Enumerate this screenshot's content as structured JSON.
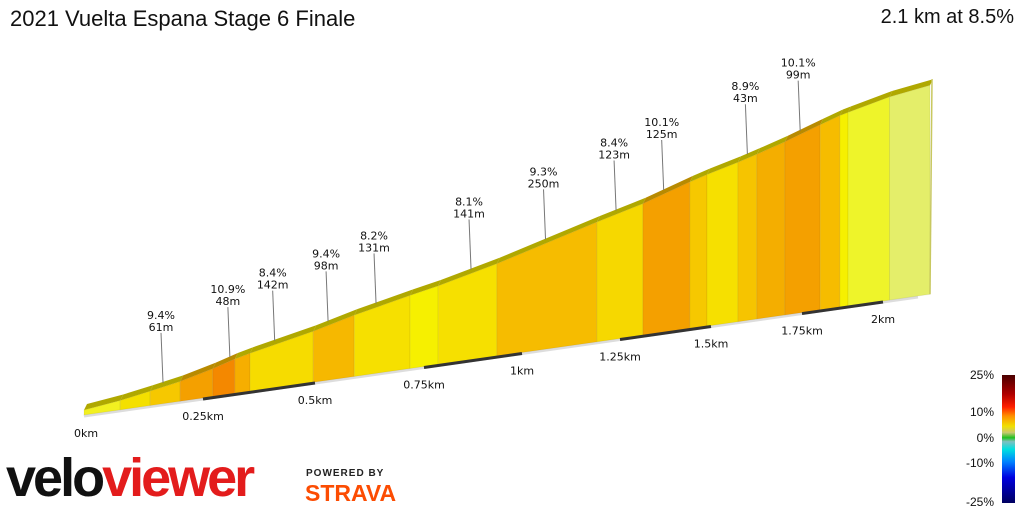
{
  "header": {
    "title": "2021 Vuelta Espana Stage 6 Finale",
    "summary": "2.1 km at 8.5%"
  },
  "chart_data": {
    "type": "area",
    "title": "2021 Vuelta Espana Stage 6 Finale",
    "distance_km": 2.1,
    "avg_grade_pct": 8.5,
    "x_ticks": [
      "0km",
      "0.25km",
      "0.5km",
      "0.75km",
      "1km",
      "1.25km",
      "1.5km",
      "1.75km",
      "2km"
    ],
    "segments": [
      {
        "start_km": 0,
        "end_km": 0.076,
        "grade": 5,
        "color": "#f2f020"
      },
      {
        "start_km": 0.076,
        "end_km": 0.139,
        "grade": 7,
        "color": "#f4e000"
      },
      {
        "start_km": 0.139,
        "end_km": 0.202,
        "grade": 7.5,
        "color": "#f6c800"
      },
      {
        "start_km": 0.202,
        "end_km": 0.272,
        "grade": 10,
        "color": "#f4a000"
      },
      {
        "start_km": 0.272,
        "end_km": 0.321,
        "grade": 11.5,
        "color": "#f48800"
      },
      {
        "start_km": 0.321,
        "end_km": 0.355,
        "grade": 9,
        "color": "#f6ae00"
      },
      {
        "start_km": 0.355,
        "end_km": 0.496,
        "grade": 8,
        "color": "#f6dc00"
      },
      {
        "start_km": 0.496,
        "end_km": 0.59,
        "grade": 9.4,
        "color": "#f6b800"
      },
      {
        "start_km": 0.59,
        "end_km": 0.718,
        "grade": 8,
        "color": "#f6e000"
      },
      {
        "start_km": 0.718,
        "end_km": 0.786,
        "grade": 7,
        "color": "#f6f000"
      },
      {
        "start_km": 0.786,
        "end_km": 0.936,
        "grade": 8,
        "color": "#f6e000"
      },
      {
        "start_km": 0.936,
        "end_km": 1.191,
        "grade": 9.3,
        "color": "#f6bc00"
      },
      {
        "start_km": 1.191,
        "end_km": 1.313,
        "grade": 8.4,
        "color": "#f6d800"
      },
      {
        "start_km": 1.313,
        "end_km": 1.442,
        "grade": 10.1,
        "color": "#f4a000"
      },
      {
        "start_km": 1.442,
        "end_km": 1.489,
        "grade": 9,
        "color": "#f6c800"
      },
      {
        "start_km": 1.489,
        "end_km": 1.574,
        "grade": 8,
        "color": "#f6e000"
      },
      {
        "start_km": 1.574,
        "end_km": 1.626,
        "grade": 9,
        "color": "#f6c400"
      },
      {
        "start_km": 1.626,
        "end_km": 1.703,
        "grade": 9.5,
        "color": "#f4ae00"
      },
      {
        "start_km": 1.703,
        "end_km": 1.806,
        "grade": 10.1,
        "color": "#f4a000"
      },
      {
        "start_km": 1.806,
        "end_km": 1.867,
        "grade": 9,
        "color": "#f6bc00"
      },
      {
        "start_km": 1.867,
        "end_km": 1.892,
        "grade": 7,
        "color": "#f6f000"
      },
      {
        "start_km": 1.892,
        "end_km": 2.02,
        "grade": 6.5,
        "color": "#eef42a"
      },
      {
        "start_km": 2.02,
        "end_km": 2.145,
        "grade": 4,
        "color": "#e4ee6a"
      }
    ],
    "annotations": [
      {
        "km": 0.166,
        "grade": "9.4%",
        "length": "61m"
      },
      {
        "km": 0.31,
        "grade": "10.9%",
        "length": "48m"
      },
      {
        "km": 0.41,
        "grade": "8.4%",
        "length": "142m"
      },
      {
        "km": 0.53,
        "grade": "9.4%",
        "length": "98m"
      },
      {
        "km": 0.64,
        "grade": "8.2%",
        "length": "131m"
      },
      {
        "km": 0.87,
        "grade": "8.1%",
        "length": "141m"
      },
      {
        "km": 1.06,
        "grade": "9.3%",
        "length": "250m"
      },
      {
        "km": 1.24,
        "grade": "8.4%",
        "length": "123m"
      },
      {
        "km": 1.37,
        "grade": "10.1%",
        "length": "125m"
      },
      {
        "km": 1.6,
        "grade": "8.9%",
        "length": "43m"
      },
      {
        "km": 1.745,
        "grade": "10.1%",
        "length": "99m"
      }
    ]
  },
  "legend": {
    "labels": [
      "25%",
      "10%",
      "0%",
      "-10%",
      "-25%"
    ]
  },
  "branding": {
    "logo_part1": "velo",
    "logo_part2": "viewer",
    "powered_by": "POWERED BY",
    "strava": "STRAVA"
  }
}
